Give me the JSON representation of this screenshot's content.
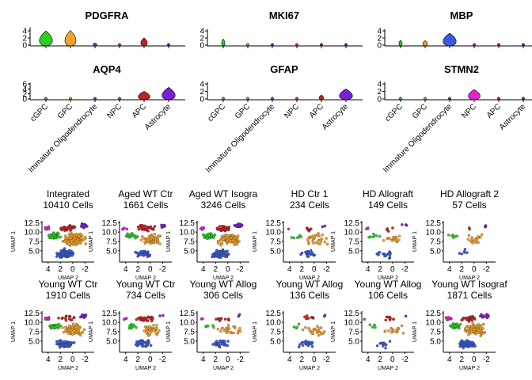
{
  "colors": {
    "cGPC": "#2ecc27",
    "GPC": "#f2a12a",
    "Immature Oligodendrocyte": "#3a5bd9",
    "NPC": "#e81fd2",
    "APC": "#c42222",
    "Astrocyte": "#7a1fd6",
    "axis": "#000000"
  },
  "violin_panel": {
    "type": "violin",
    "cell_types": [
      "cGPC",
      "GPC",
      "Immature Oligodendrocyte",
      "NPC",
      "APC",
      "Astrocyte"
    ],
    "genes": [
      {
        "name": "PDGFRA",
        "yticks": [
          "0",
          "2",
          "4"
        ],
        "ymax": 5,
        "medians": [
          2.2,
          2.3,
          0.1,
          0.05,
          1.0,
          0.05
        ],
        "widths": [
          1.0,
          0.85,
          0.3,
          0.2,
          0.5,
          0.2
        ]
      },
      {
        "name": "MKI67",
        "yticks": [
          "0",
          "2",
          "4"
        ],
        "ymax": 4.5,
        "medians": [
          0.8,
          0.05,
          0.05,
          0.05,
          0.05,
          0.05
        ],
        "widths": [
          0.25,
          0.2,
          0.2,
          0.2,
          0.2,
          0.2
        ]
      },
      {
        "name": "MBP",
        "yticks": [
          "0",
          "2",
          "4"
        ],
        "ymax": 4.5,
        "medians": [
          0.6,
          0.5,
          1.8,
          0.05,
          0.05,
          0.05
        ],
        "widths": [
          0.25,
          0.35,
          1.0,
          0.2,
          0.2,
          0.2
        ]
      },
      {
        "name": "AQP4",
        "yticks": [
          "0",
          "2",
          "4",
          "6"
        ],
        "ymax": 6.5,
        "medians": [
          0.05,
          0.05,
          0.05,
          0.05,
          1.5,
          2.5
        ],
        "widths": [
          0.2,
          0.2,
          0.2,
          0.2,
          0.9,
          1.0
        ]
      },
      {
        "name": "GFAP",
        "yticks": [
          "0",
          "2",
          "4"
        ],
        "ymax": 4.5,
        "medians": [
          0.05,
          0.05,
          0.05,
          0.05,
          0.4,
          1.4
        ],
        "widths": [
          0.2,
          0.2,
          0.2,
          0.2,
          0.35,
          1.0
        ]
      },
      {
        "name": "STMN2",
        "yticks": [
          "0",
          "2",
          "4"
        ],
        "ymax": 4.5,
        "medians": [
          0.05,
          0.05,
          0.05,
          1.3,
          0.05,
          0.05
        ],
        "widths": [
          0.2,
          0.2,
          0.2,
          0.9,
          0.2,
          0.2
        ]
      }
    ]
  },
  "umap_panel": {
    "type": "scatter",
    "xlabel": "UMAP 2",
    "ylabel": "UMAP 1",
    "xlim": [
      5,
      -3.5
    ],
    "ylim": [
      2,
      13
    ],
    "xticks": [
      "4",
      "2",
      "0",
      "-2"
    ],
    "yticks": [
      "5.0",
      "7.5",
      "10.0",
      "12.5"
    ],
    "samples": [
      {
        "name": "Integrated",
        "cells": "10410 Cells",
        "density": 1.0
      },
      {
        "name": "Aged WT Ctr",
        "cells": "1661 Cells",
        "density": 0.35
      },
      {
        "name": "Aged WT Isogra",
        "cells": "3246 Cells",
        "density": 0.7
      },
      {
        "name": "HD Ctr 1",
        "cells": "234 Cells",
        "density": 0.12
      },
      {
        "name": "HD Allograft",
        "cells": "149 Cells",
        "density": 0.08
      },
      {
        "name": "HD Allograft 2",
        "cells": "57 Cells",
        "density": 0.04
      },
      {
        "name": "Young WT Ctr",
        "cells": "1910 Cells",
        "density": 0.5
      },
      {
        "name": "Young WT Ctr",
        "cells": "734 Cells",
        "density": 0.25
      },
      {
        "name": "Young WT Allog",
        "cells": "306 Cells",
        "density": 0.15
      },
      {
        "name": "Young WT Allog",
        "cells": "136 Cells",
        "density": 0.09
      },
      {
        "name": "Young WT Allog",
        "cells": "106 Cells",
        "density": 0.07
      },
      {
        "name": "Young WT Isograf",
        "cells": "1871 Cells",
        "density": 0.6
      }
    ]
  }
}
